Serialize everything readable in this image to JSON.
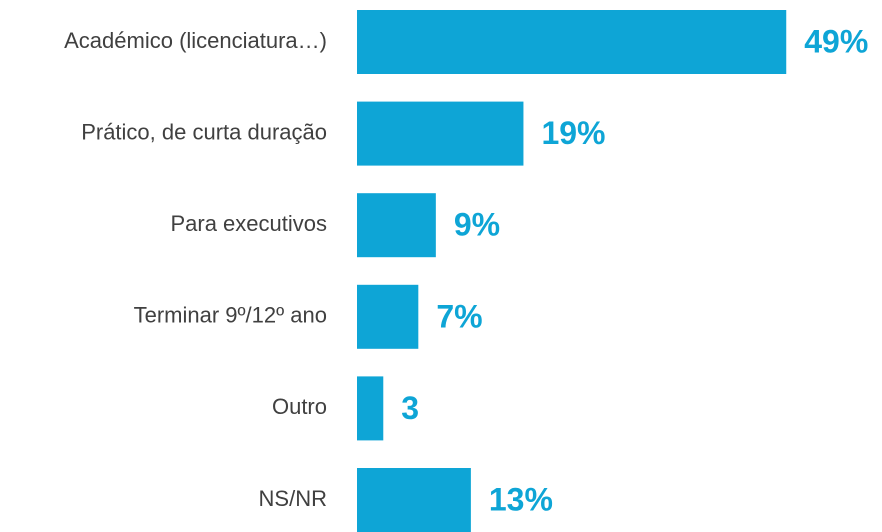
{
  "chart_data": {
    "type": "hbar",
    "categories": [
      "Académico (licenciatura…)",
      "Prático, de curta duração",
      "Para executivos",
      "Terminar 9º/12º ano",
      "Outro",
      "NS/NR"
    ],
    "values": [
      49,
      19,
      9,
      7,
      3,
      13
    ],
    "value_labels": [
      "49%",
      "19%",
      "9%",
      "7%",
      "3",
      "13%"
    ],
    "color": "#0ea5d6"
  }
}
